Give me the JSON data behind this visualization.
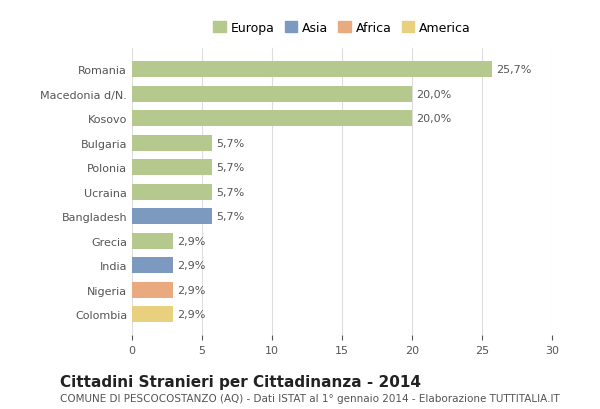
{
  "countries": [
    "Romania",
    "Macedonia d/N.",
    "Kosovo",
    "Bulgaria",
    "Polonia",
    "Ucraina",
    "Bangladesh",
    "Grecia",
    "India",
    "Nigeria",
    "Colombia"
  ],
  "values": [
    25.7,
    20.0,
    20.0,
    5.7,
    5.7,
    5.7,
    5.7,
    2.9,
    2.9,
    2.9,
    2.9
  ],
  "labels": [
    "25,7%",
    "20,0%",
    "20,0%",
    "5,7%",
    "5,7%",
    "5,7%",
    "5,7%",
    "2,9%",
    "2,9%",
    "2,9%",
    "2,9%"
  ],
  "continents": [
    "Europa",
    "Europa",
    "Europa",
    "Europa",
    "Europa",
    "Europa",
    "Asia",
    "Europa",
    "Asia",
    "Africa",
    "America"
  ],
  "colors": {
    "Europa": "#b5c98e",
    "Asia": "#7c9abf",
    "Africa": "#e8aa7e",
    "America": "#e8d07e"
  },
  "legend_order": [
    "Europa",
    "Asia",
    "Africa",
    "America"
  ],
  "legend_colors": [
    "#b5c98e",
    "#7c9abf",
    "#e8aa7e",
    "#e8d07e"
  ],
  "xlim": [
    0,
    30
  ],
  "xticks": [
    0,
    5,
    10,
    15,
    20,
    25,
    30
  ],
  "title": "Cittadini Stranieri per Cittadinanza - 2014",
  "subtitle": "COMUNE DI PESCOCOSTANZO (AQ) - Dati ISTAT al 1° gennaio 2014 - Elaborazione TUTTITALIA.IT",
  "bg_color": "#ffffff",
  "grid_color": "#dddddd",
  "bar_height": 0.65,
  "title_fontsize": 11,
  "subtitle_fontsize": 7.5,
  "label_fontsize": 8,
  "tick_fontsize": 8,
  "legend_fontsize": 9
}
